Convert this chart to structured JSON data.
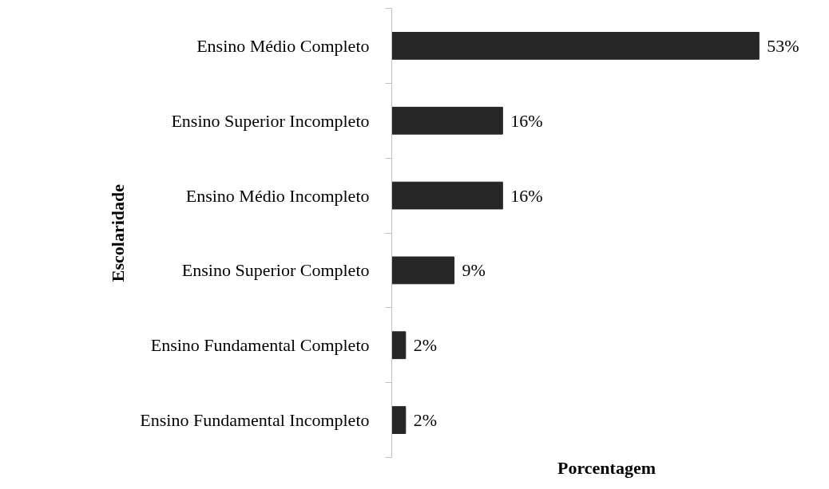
{
  "chart_data": {
    "type": "bar",
    "orientation": "horizontal",
    "xlabel": "Porcentagem",
    "ylabel": "Escolaridade",
    "categories": [
      "Ensino Médio Completo",
      "Ensino Superior Incompleto",
      "Ensino Médio Incompleto",
      "Ensino Superior Completo",
      "Ensino Fundamental Completo",
      "Ensino Fundamental Incompleto"
    ],
    "values": [
      53,
      16,
      16,
      9,
      2,
      2
    ],
    "value_labels": [
      "53%",
      "16%",
      "16%",
      "9%",
      "2%",
      "2%"
    ],
    "color": "#262626",
    "grid": false,
    "tick_labels": "y"
  }
}
